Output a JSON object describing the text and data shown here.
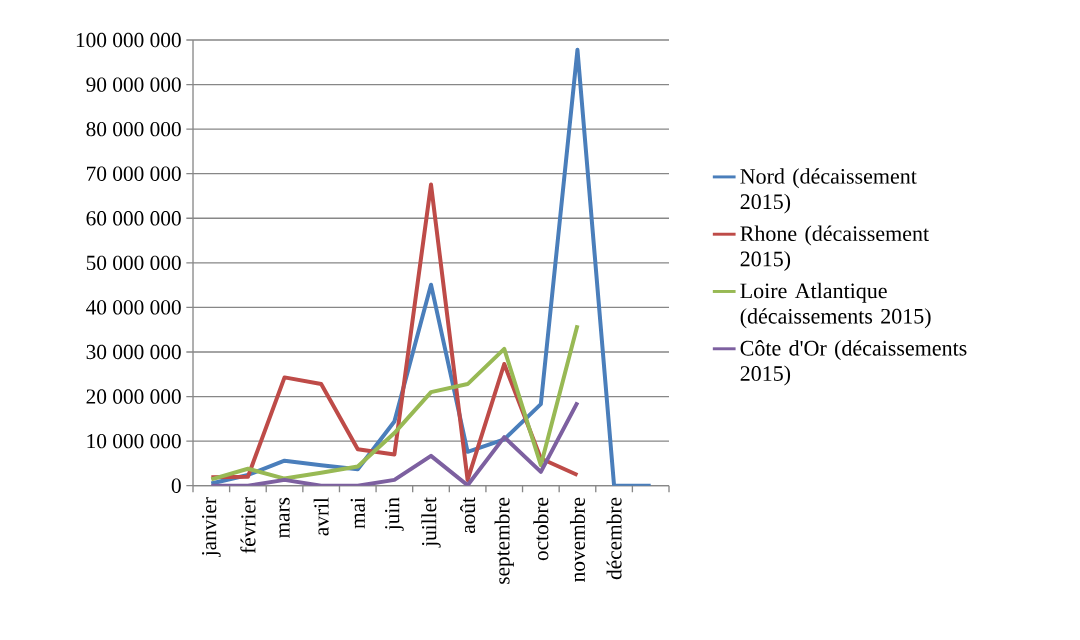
{
  "chart_data": {
    "type": "line",
    "categories": [
      "janvier",
      "février",
      "mars",
      "avril",
      "mai",
      "juin",
      "juillet",
      "août",
      "septembre",
      "octobre",
      "novembre",
      "décembre",
      null
    ],
    "series": [
      {
        "name": "Nord (décaissement 2015)",
        "color": "#4a7ebb",
        "values": [
          500000,
          2400000,
          5600000,
          4600000,
          3700000,
          14400000,
          45100000,
          7600000,
          10400000,
          18300000,
          97800000,
          0,
          0
        ]
      },
      {
        "name": "Rhone (décaissement 2015)",
        "color": "#be4b48",
        "values": [
          1900000,
          2000000,
          24300000,
          22800000,
          8200000,
          7000000,
          67600000,
          1300000,
          27300000,
          6100000,
          2400000,
          null,
          null
        ]
      },
      {
        "name": "Loire Atlantique (décaissements 2015)",
        "color": "#98b954",
        "values": [
          1400000,
          3800000,
          1600000,
          2900000,
          4300000,
          11800000,
          21000000,
          22800000,
          30700000,
          4600000,
          36000000,
          null,
          null
        ]
      },
      {
        "name": "Côte d'Or (décaissements 2015)",
        "color": "#7d60a0",
        "values": [
          0,
          0,
          1300000,
          0,
          0,
          1300000,
          6700000,
          100000,
          10900000,
          3100000,
          18700000,
          null,
          null
        ]
      }
    ],
    "ylim": [
      0,
      100000000
    ],
    "yticks": [
      {
        "value": 0,
        "label": "0"
      },
      {
        "value": 10000000,
        "label": "10 000 000"
      },
      {
        "value": 20000000,
        "label": "20 000 000"
      },
      {
        "value": 30000000,
        "label": "30 000 000"
      },
      {
        "value": 40000000,
        "label": "40 000 000"
      },
      {
        "value": 50000000,
        "label": "50 000 000"
      },
      {
        "value": 60000000,
        "label": "60 000 000"
      },
      {
        "value": 70000000,
        "label": "70 000 000"
      },
      {
        "value": 80000000,
        "label": "80 000 000"
      },
      {
        "value": 90000000,
        "label": "90 000 000"
      },
      {
        "value": 100000000,
        "label": "100 000 000"
      }
    ],
    "grid": "y",
    "legend": "right",
    "marker": "none",
    "line_style": "solid"
  }
}
